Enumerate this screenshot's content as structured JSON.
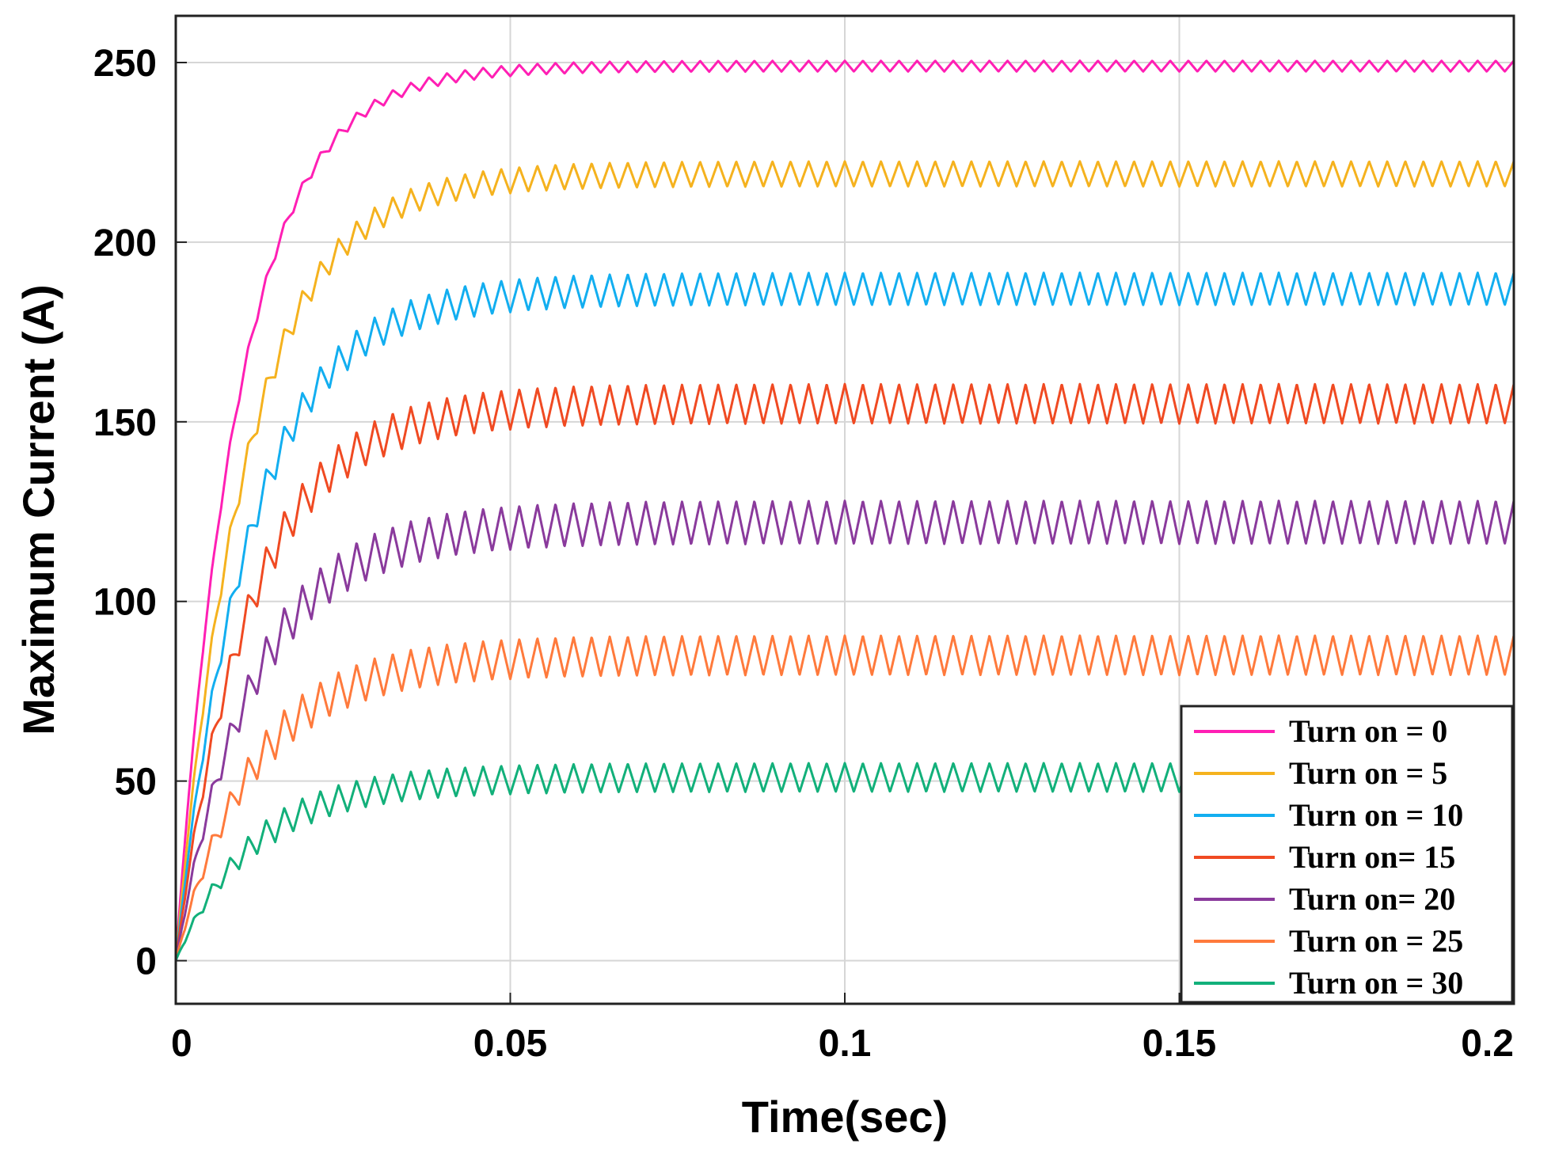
{
  "chart_data": {
    "type": "line",
    "title": "",
    "xlabel": "Time(sec)",
    "ylabel": "Maximum Current (A)",
    "xlim": [
      0,
      0.2
    ],
    "ylim": [
      -12,
      263
    ],
    "xticks": [
      0,
      0.05,
      0.1,
      0.15,
      0.2
    ],
    "xtick_labels": [
      "0",
      "0.05",
      "0.1",
      "0.15",
      "0.2"
    ],
    "yticks": [
      0,
      50,
      100,
      150,
      200,
      250
    ],
    "ytick_labels": [
      "0",
      "50",
      "100",
      "150",
      "200",
      "250"
    ],
    "grid": true,
    "legend_position": "bottom-right",
    "series": [
      {
        "name": "Turn on = 0",
        "color": "#ff1fb4",
        "steady_value": 249,
        "time_constant": 0.0095,
        "ripple": 1.5
      },
      {
        "name": "Turn on = 5",
        "color": "#f5b21e",
        "steady_value": 219,
        "time_constant": 0.0105,
        "ripple": 3.5
      },
      {
        "name": "Turn on = 10",
        "color": "#12aef0",
        "steady_value": 187,
        "time_constant": 0.011,
        "ripple": 4.5
      },
      {
        "name": "Turn on= 15",
        "color": "#f04a22",
        "steady_value": 155,
        "time_constant": 0.011,
        "ripple": 5.5
      },
      {
        "name": "Turn on= 20",
        "color": "#8a3a9c",
        "steady_value": 122,
        "time_constant": 0.0115,
        "ripple": 6
      },
      {
        "name": "Turn on = 25",
        "color": "#ff7a3c",
        "steady_value": 85,
        "time_constant": 0.0115,
        "ripple": 5.5
      },
      {
        "name": "Turn on = 30",
        "color": "#12b07a",
        "steady_value": 51,
        "time_constant": 0.0115,
        "ripple": 4
      }
    ]
  }
}
